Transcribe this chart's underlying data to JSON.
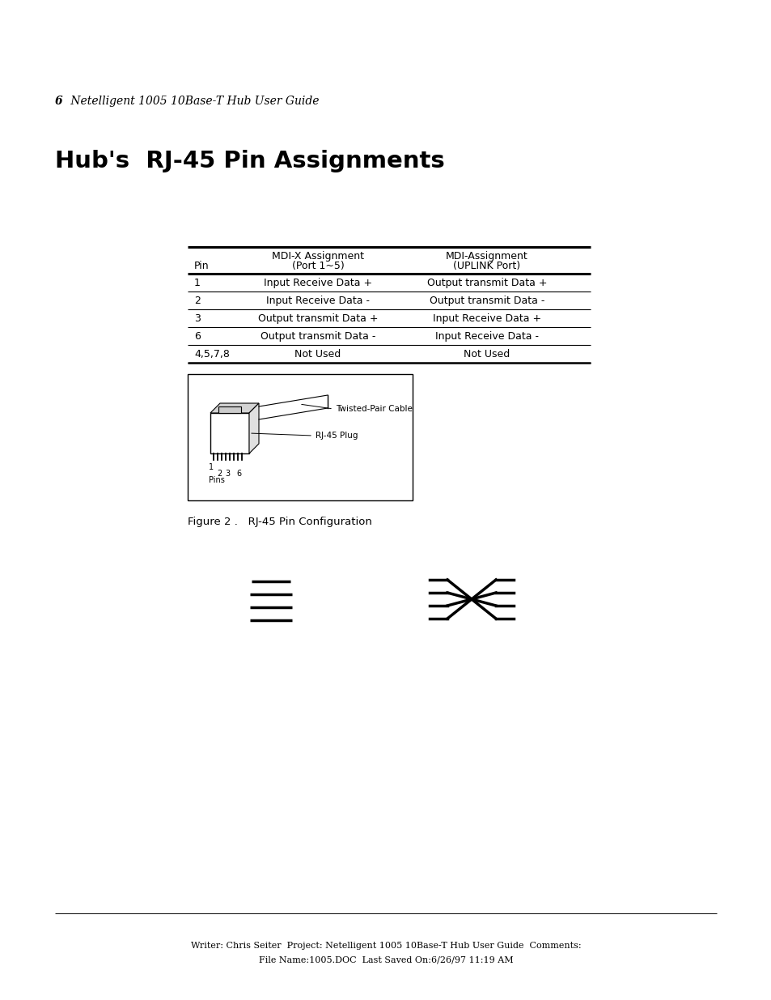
{
  "bg_color": "#ffffff",
  "page_num": "6",
  "header_text": "Netelligent 1005 10Base-T Hub User Guide",
  "title": "Hub's  RJ-45 Pin Assignments",
  "col_hdr1": [
    "",
    "MDI-X Assignment",
    "MDI-Assignment"
  ],
  "col_hdr2": [
    "Pin",
    "(Port 1~5)",
    "(UPLINK Port)"
  ],
  "table_rows": [
    [
      "1",
      "Input Receive Data +",
      "Output transmit Data +"
    ],
    [
      "2",
      "Input Receive Data -",
      "Output transmit Data -"
    ],
    [
      "3",
      "Output transmit Data +",
      "Input Receive Data +"
    ],
    [
      "6",
      "Output transmit Data -",
      "Input Receive Data -"
    ],
    [
      "4,5,7,8",
      "Not Used",
      "Not Used"
    ]
  ],
  "figure_caption": "Figure 2 .   RJ-45 Pin Configuration",
  "footer1_plain": "Writer: ",
  "footer1_bold": "Chris Seiter",
  "footer1_mid": "  Project: ",
  "footer1_project": "Netelligent 1005 10Base-T Hub User Guide",
  "footer1_end": "  Comments:",
  "footer2_pre": "File Name:",
  "footer2_bold": "1005.DOC",
  "footer2_mid": "  Last Saved On:",
  "footer2_date": "6/26/97 11:19 AM"
}
